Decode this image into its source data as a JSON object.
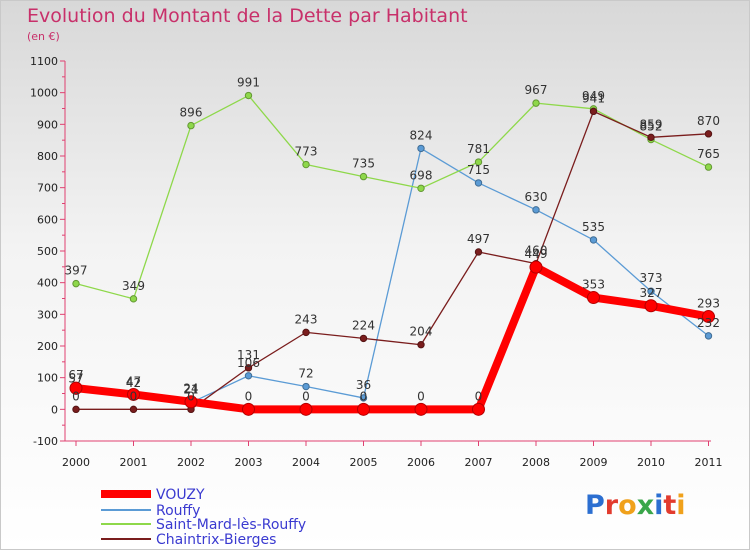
{
  "title": "Evolution du Montant de la Dette par Habitant",
  "unit": "(en €)",
  "logo": {
    "text": "Proxiti",
    "letters": [
      "P",
      "r",
      "o",
      "x",
      "i",
      "t",
      "i"
    ],
    "colors": [
      "#2c6fd1",
      "#e23b2e",
      "#f0a11b",
      "#3aa64a",
      "#2c6fd1",
      "#e23b2e",
      "#f0a11b"
    ]
  },
  "chart_data": {
    "type": "line",
    "title": "Evolution du Montant de la Dette par Habitant",
    "ylabel": "(en €)",
    "xlabel": "",
    "categories": [
      "2000",
      "2001",
      "2002",
      "2003",
      "2004",
      "2005",
      "2006",
      "2007",
      "2008",
      "2009",
      "2010",
      "2011"
    ],
    "ylim": [
      -100,
      1100
    ],
    "yticks": [
      -100,
      0,
      100,
      200,
      300,
      400,
      500,
      600,
      700,
      800,
      900,
      1000,
      1100
    ],
    "grid": false,
    "legend_position": "bottom-left",
    "series": [
      {
        "name": "VOUZY",
        "color": "#ff0000",
        "emphasis": true,
        "values": [
          67,
          47,
          24,
          0,
          0,
          0,
          0,
          0,
          449,
          353,
          327,
          293
        ]
      },
      {
        "name": "Rouffy",
        "color": "#5b9bd5",
        "values": [
          57,
          42,
          21,
          106,
          72,
          36,
          824,
          715,
          630,
          535,
          373,
          232
        ]
      },
      {
        "name": "Saint-Mard-lès-Rouffy",
        "color": "#8ed84a",
        "values": [
          397,
          349,
          896,
          991,
          773,
          735,
          698,
          781,
          967,
          949,
          852,
          765
        ]
      },
      {
        "name": "Chaintrix-Bierges",
        "color": "#7a1d1d",
        "values": [
          0,
          0,
          0,
          131,
          243,
          224,
          204,
          497,
          460,
          941,
          859,
          870
        ]
      }
    ]
  }
}
